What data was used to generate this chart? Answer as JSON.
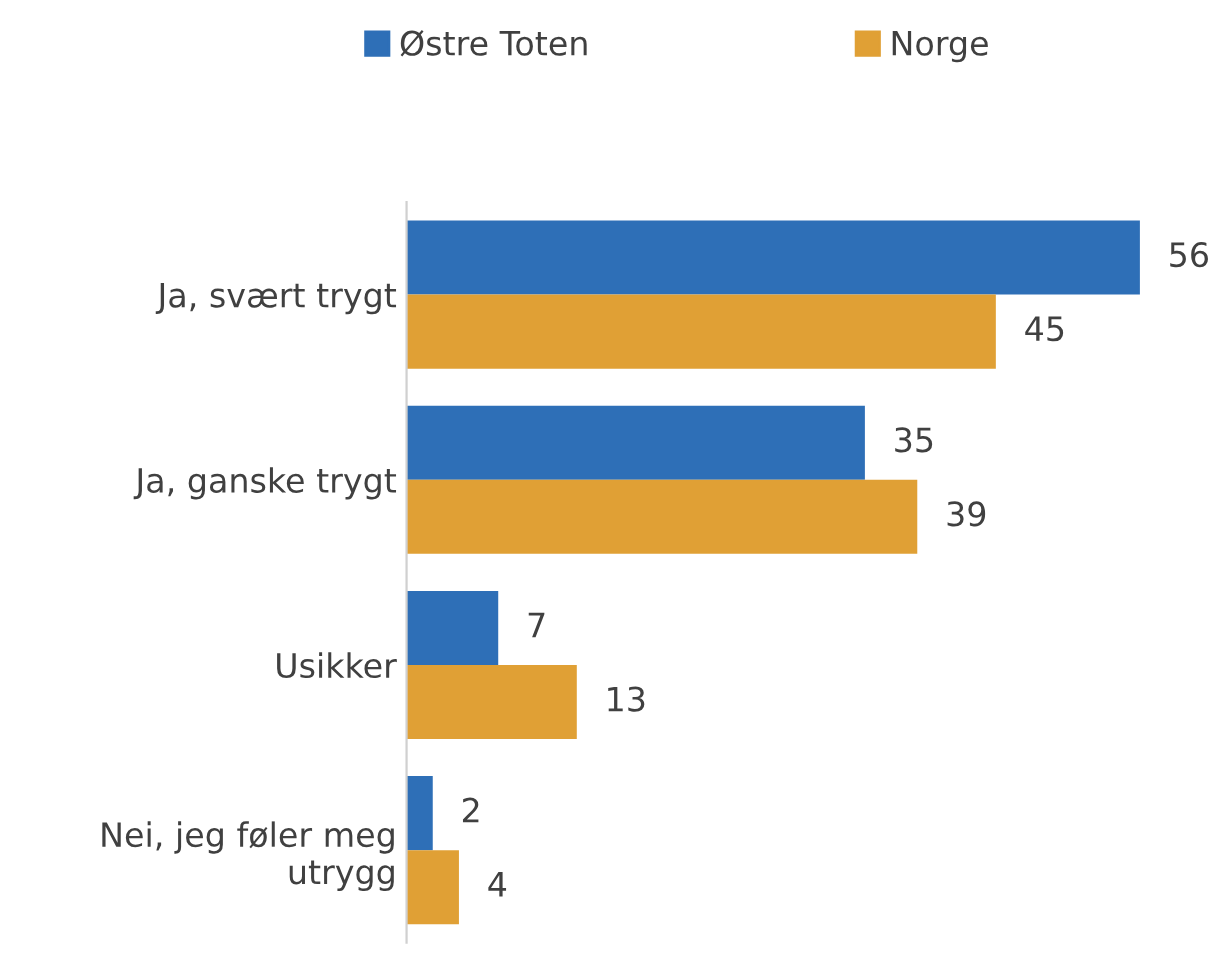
{
  "chart_data": {
    "type": "bar",
    "orientation": "horizontal",
    "categories": [
      "Ja, svært trygt",
      "Ja, ganske trygt",
      "Usikker",
      "Nei, jeg føler meg\nutrygg"
    ],
    "series": [
      {
        "name": "Østre Toten",
        "color": "#2e6fb7",
        "values": [
          56,
          35,
          7,
          2
        ]
      },
      {
        "name": "Norge",
        "color": "#e0a035",
        "values": [
          45,
          39,
          13,
          4
        ]
      }
    ],
    "data_labels": true,
    "legend": "top",
    "grid": false,
    "tick_labels": "y"
  }
}
